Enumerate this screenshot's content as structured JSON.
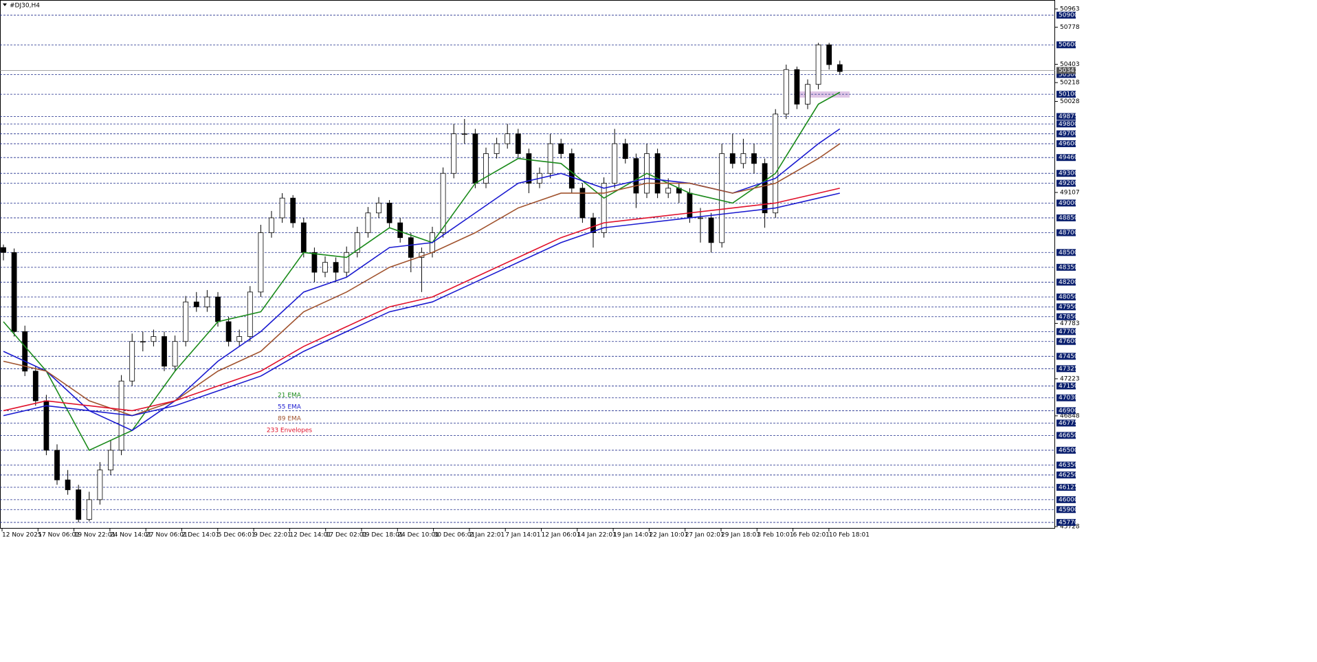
{
  "chart_data": {
    "type": "candlestick",
    "title": "#DJ30,H4",
    "ylim": [
      45728,
      50963
    ],
    "yticks": [
      50963,
      50778,
      50403,
      50218,
      50028,
      49107,
      47783,
      47223,
      46848,
      45728
    ],
    "levels": [
      50900,
      50600,
      50300,
      50100,
      49875,
      49800,
      49700,
      49600,
      49460,
      49300,
      49200,
      49000,
      48850,
      48700,
      48500,
      48350,
      48200,
      48050,
      47950,
      47850,
      47700,
      47600,
      47450,
      47325,
      47150,
      47030,
      46900,
      46775,
      46650,
      46500,
      46350,
      46250,
      46125,
      46000,
      45900,
      45770
    ],
    "current_price": 50341,
    "time_labels": [
      "12 Nov 2025",
      "17 Nov 06:01",
      "19 Nov 22:01",
      "24 Nov 14:01",
      "27 Nov 06:01",
      "2 Dec 14:01",
      "5 Dec 06:01",
      "9 Dec 22:01",
      "12 Dec 14:01",
      "17 Dec 02:01",
      "19 Dec 18:01",
      "24 Dec 10:01",
      "30 Dec 06:01",
      "2 Jan 22:01",
      "7 Jan 14:01",
      "12 Jan 06:01",
      "14 Jan 22:01",
      "19 Jan 14:01",
      "22 Jan 10:01",
      "27 Jan 02:01",
      "29 Jan 18:01",
      "3 Feb 10:01",
      "6 Feb 02:01",
      "10 Feb 18:01"
    ],
    "candles": [
      [
        48550,
        48580,
        48420,
        48500
      ],
      [
        48500,
        48540,
        47650,
        47700
      ],
      [
        47700,
        47760,
        47250,
        47300
      ],
      [
        47300,
        47350,
        46950,
        47000
      ],
      [
        47000,
        47060,
        46450,
        46500
      ],
      [
        46500,
        46560,
        46150,
        46200
      ],
      [
        46200,
        46300,
        46050,
        46100
      ],
      [
        46100,
        46150,
        45770,
        45800
      ],
      [
        45800,
        46080,
        45780,
        46000
      ],
      [
        46000,
        46380,
        45950,
        46300
      ],
      [
        46300,
        46600,
        46250,
        46500
      ],
      [
        46500,
        47260,
        46450,
        47200
      ],
      [
        47200,
        47680,
        47150,
        47600
      ],
      [
        47600,
        47700,
        47500,
        47600
      ],
      [
        47600,
        47720,
        47550,
        47650
      ],
      [
        47650,
        47700,
        47300,
        47350
      ],
      [
        47350,
        47660,
        47300,
        47600
      ],
      [
        47600,
        48060,
        47550,
        48000
      ],
      [
        48000,
        48100,
        47900,
        47950
      ],
      [
        47950,
        48120,
        47900,
        48050
      ],
      [
        48050,
        48100,
        47750,
        47800
      ],
      [
        47800,
        47850,
        47550,
        47600
      ],
      [
        47600,
        47720,
        47550,
        47650
      ],
      [
        47650,
        48160,
        47600,
        48100
      ],
      [
        48100,
        48780,
        48050,
        48700
      ],
      [
        48700,
        48920,
        48650,
        48850
      ],
      [
        48850,
        49100,
        48800,
        49050
      ],
      [
        49050,
        49080,
        48750,
        48800
      ],
      [
        48800,
        48850,
        48450,
        48500
      ],
      [
        48500,
        48550,
        48200,
        48300
      ],
      [
        48300,
        48460,
        48250,
        48400
      ],
      [
        48400,
        48450,
        48200,
        48300
      ],
      [
        48300,
        48560,
        48250,
        48500
      ],
      [
        48500,
        48760,
        48450,
        48700
      ],
      [
        48700,
        48960,
        48650,
        48900
      ],
      [
        48900,
        49060,
        48850,
        49000
      ],
      [
        49000,
        49030,
        48750,
        48800
      ],
      [
        48800,
        48850,
        48600,
        48650
      ],
      [
        48650,
        48700,
        48300,
        48450
      ],
      [
        48450,
        48550,
        48100,
        48500
      ],
      [
        48500,
        48760,
        48450,
        48700
      ],
      [
        48700,
        49360,
        48650,
        49300
      ],
      [
        49300,
        49800,
        49250,
        49700
      ],
      [
        49700,
        49850,
        49600,
        49700
      ],
      [
        49700,
        49750,
        49150,
        49200
      ],
      [
        49200,
        49560,
        49150,
        49500
      ],
      [
        49500,
        49660,
        49450,
        49600
      ],
      [
        49600,
        49800,
        49550,
        49700
      ],
      [
        49700,
        49750,
        49450,
        49500
      ],
      [
        49500,
        49550,
        49100,
        49200
      ],
      [
        49200,
        49360,
        49150,
        49300
      ],
      [
        49300,
        49700,
        49250,
        49600
      ],
      [
        49600,
        49650,
        49450,
        49500
      ],
      [
        49500,
        49550,
        49100,
        49150
      ],
      [
        49150,
        49200,
        48800,
        48850
      ],
      [
        48850,
        48900,
        48550,
        48700
      ],
      [
        48700,
        49260,
        48650,
        49200
      ],
      [
        49200,
        49750,
        49150,
        49600
      ],
      [
        49600,
        49650,
        49400,
        49450
      ],
      [
        49450,
        49500,
        48950,
        49100
      ],
      [
        49100,
        49600,
        49050,
        49500
      ],
      [
        49500,
        49550,
        49050,
        49100
      ],
      [
        49100,
        49250,
        49050,
        49150
      ],
      [
        49150,
        49200,
        49000,
        49100
      ],
      [
        49100,
        49150,
        48800,
        48850
      ],
      [
        48850,
        48950,
        48600,
        48850
      ],
      [
        48850,
        48900,
        48500,
        48600
      ],
      [
        48600,
        49600,
        48550,
        49500
      ],
      [
        49500,
        49700,
        49350,
        49400
      ],
      [
        49400,
        49650,
        49350,
        49500
      ],
      [
        49500,
        49600,
        49300,
        49400
      ],
      [
        49400,
        49450,
        48750,
        48900
      ],
      [
        48900,
        49950,
        48850,
        49900
      ],
      [
        49900,
        50400,
        49850,
        50350
      ],
      [
        50350,
        50380,
        49950,
        50000
      ],
      [
        50000,
        50250,
        49950,
        50200
      ],
      [
        50200,
        50620,
        50150,
        50600
      ],
      [
        50600,
        50620,
        50350,
        50400
      ],
      [
        50400,
        50440,
        50300,
        50330
      ]
    ],
    "line_x": [
      1,
      5,
      9,
      13,
      17,
      21,
      25,
      29,
      33,
      37,
      41,
      45,
      49,
      53,
      57,
      61,
      65,
      69,
      73,
      77,
      79
    ],
    "series": [
      {
        "name": "21 EMA",
        "color": "#1a8a1a",
        "values": [
          47800,
          47300,
          46500,
          46700,
          47300,
          47800,
          47900,
          48500,
          48450,
          48750,
          48600,
          49200,
          49450,
          49400,
          49050,
          49300,
          49100,
          49000,
          49300,
          50000,
          50120
        ]
      },
      {
        "name": "55 EMA",
        "color": "#1a1ad0",
        "values": [
          47500,
          47300,
          46900,
          46700,
          47000,
          47400,
          47700,
          48100,
          48250,
          48550,
          48600,
          48900,
          49200,
          49300,
          49150,
          49250,
          49200,
          49100,
          49250,
          49600,
          49750
        ]
      },
      {
        "name": "89 EMA",
        "color": "#a0522d",
        "values": [
          47400,
          47300,
          47000,
          46850,
          47000,
          47300,
          47500,
          47900,
          48100,
          48350,
          48500,
          48700,
          48950,
          49100,
          49100,
          49200,
          49200,
          49100,
          49200,
          49450,
          49600
        ]
      },
      {
        "name": "233 Envelopes",
        "color": "#e0102a",
        "values": [
          46900,
          47000,
          46950,
          46900,
          47000,
          47150,
          47300,
          47550,
          47750,
          47950,
          48050,
          48250,
          48450,
          48650,
          48800,
          48850,
          48900,
          48950,
          49000,
          49100,
          49150
        ]
      },
      {
        "color": "#1a1ad0",
        "values": [
          46850,
          46950,
          46900,
          46850,
          46950,
          47100,
          47250,
          47500,
          47700,
          47900,
          48000,
          48200,
          48400,
          48600,
          48750,
          48800,
          48850,
          48900,
          48950,
          49050,
          49100
        ]
      }
    ]
  }
}
